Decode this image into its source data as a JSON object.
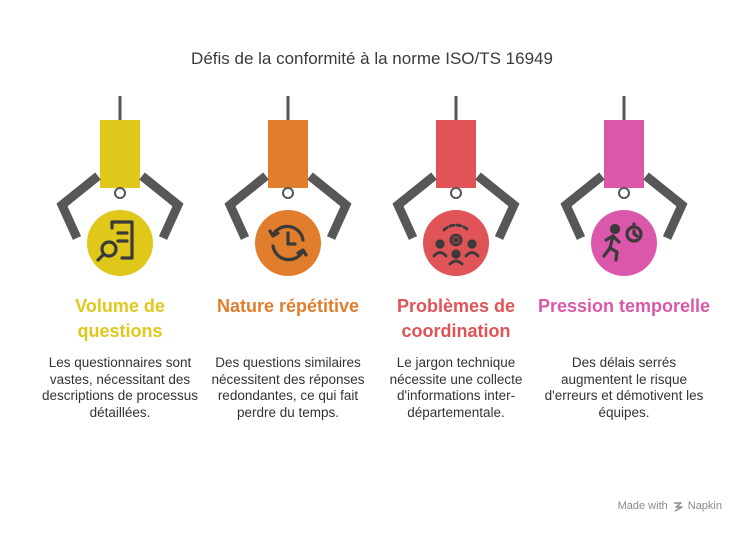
{
  "title": "Défis de la conformité à la norme ISO/TS 16949",
  "colors": {
    "yellow": "#E0C81B",
    "orange": "#E07E2E",
    "red": "#E05356",
    "pink": "#DA57A9",
    "claw": "#575757"
  },
  "items": [
    {
      "title": "Volume de questions",
      "description": "Les questionnaires sont vastes, nécessitant des descriptions de processus détaillées.",
      "icon": "document-search-icon",
      "color": "#E0C81B"
    },
    {
      "title": "Nature répétitive",
      "description": "Des questions similaires nécessitent des réponses redondantes, ce qui fait perdre du temps.",
      "icon": "clock-refresh-icon",
      "color": "#E07E2E"
    },
    {
      "title": "Problèmes de coordination",
      "description": "Le jargon technique nécessite une collecte d'informations inter-départementale.",
      "icon": "team-gear-icon",
      "color": "#E05356"
    },
    {
      "title": "Pression temporelle",
      "description": "Des délais serrés augmentent le risque d'erreurs et démotivent les équipes.",
      "icon": "running-stopwatch-icon",
      "color": "#DA57A9"
    }
  ],
  "footer": {
    "made_with": "Made with",
    "brand": "Napkin"
  }
}
